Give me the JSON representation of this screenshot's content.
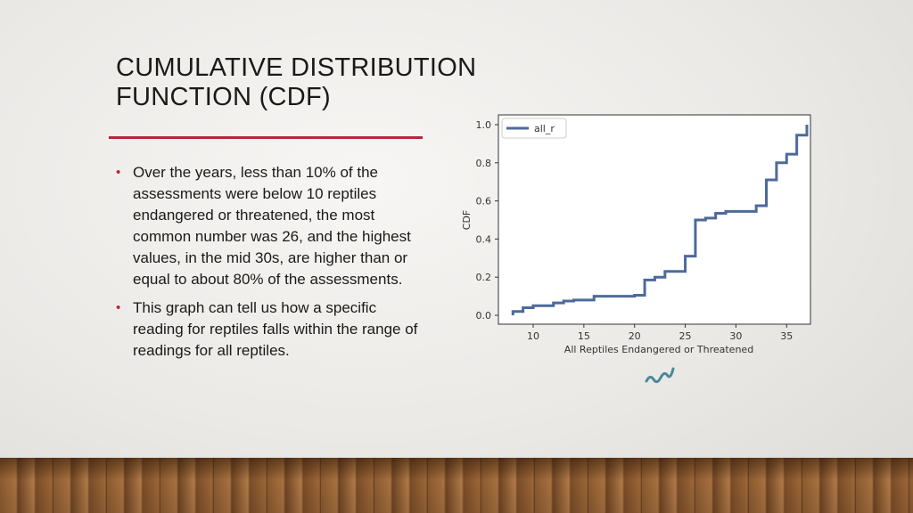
{
  "slide": {
    "title_line1": "CUMULATIVE DISTRIBUTION",
    "title_line2": "FUNCTION (CDF)",
    "bullets": [
      "Over the years, less than 10% of the assessments were below 10 reptiles endangered or threatened, the most common number was 26, and the highest values, in the mid 30s, are higher than or equal to about 80% of the assessments.",
      "This graph can tell us how a specific reading for reptiles falls within the range of readings for all reptiles."
    ]
  },
  "colors": {
    "accent": "#b5263f",
    "line": "#4c6a9b",
    "icon": "#4a8a9a"
  },
  "chart_data": {
    "type": "line",
    "title": "",
    "xlabel": "All Reptiles Endangered or Threatened",
    "ylabel": "CDF",
    "xlim": [
      6.6,
      37.5
    ],
    "ylim": [
      -0.05,
      1.05
    ],
    "xticks": [
      10,
      15,
      20,
      25,
      30,
      35
    ],
    "yticks": [
      "0.0",
      "0.2",
      "0.4",
      "0.6",
      "0.8",
      "1.0"
    ],
    "legend": {
      "position": "top-left",
      "entries": [
        "all_r"
      ]
    },
    "series": [
      {
        "name": "all_r",
        "step": true,
        "x": [
          8,
          9,
          10,
          12,
          13,
          14,
          16,
          20,
          21,
          22,
          23,
          25,
          26,
          27,
          28,
          29,
          32,
          33,
          34,
          35,
          36,
          37
        ],
        "y": [
          0.02,
          0.04,
          0.05,
          0.065,
          0.075,
          0.08,
          0.1,
          0.105,
          0.185,
          0.2,
          0.23,
          0.31,
          0.5,
          0.51,
          0.535,
          0.545,
          0.575,
          0.71,
          0.8,
          0.845,
          0.945,
          1.0
        ]
      }
    ]
  }
}
